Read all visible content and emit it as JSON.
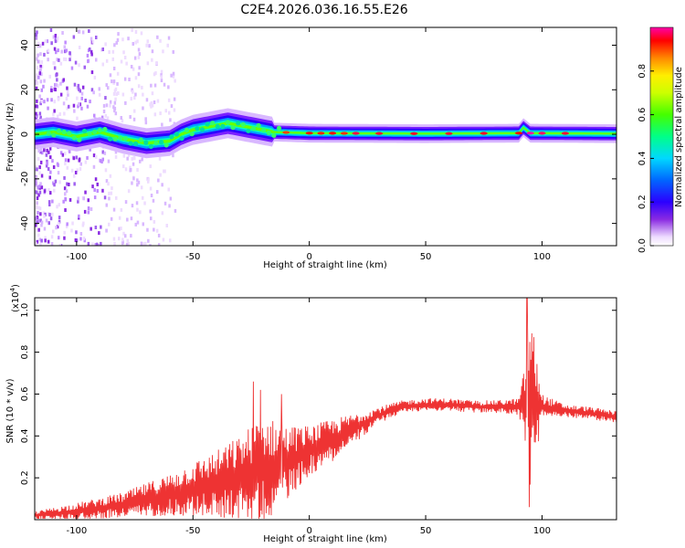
{
  "title": "C2E4.2026.036.16.55.E26",
  "chart_data": [
    {
      "type": "heatmap",
      "name": "spectrogram",
      "xlabel": "Height of straight line (km)",
      "ylabel": "Frequency (Hz)",
      "xlim": [
        -118,
        132
      ],
      "ylim": [
        -50,
        48
      ],
      "xticks": [
        -100,
        -50,
        0,
        50,
        100
      ],
      "xtick_labels": [
        "-100",
        "-50",
        "0",
        "50",
        "100"
      ],
      "yticks": [
        -40,
        -20,
        0,
        20,
        40
      ],
      "ytick_labels": [
        "-40",
        "-20",
        "0",
        "20",
        "40"
      ],
      "band_center_hz": [
        [
          -118,
          0
        ],
        [
          -110,
          1
        ],
        [
          -100,
          -1
        ],
        [
          -90,
          1
        ],
        [
          -80,
          -2
        ],
        [
          -70,
          -4
        ],
        [
          -60,
          -3
        ],
        [
          -55,
          0
        ],
        [
          -50,
          2
        ],
        [
          -45,
          3
        ],
        [
          -40,
          4
        ],
        [
          -35,
          5
        ],
        [
          -30,
          4
        ],
        [
          -25,
          3
        ],
        [
          -20,
          2
        ],
        [
          -15,
          1
        ],
        [
          0,
          0.5
        ],
        [
          50,
          0.3
        ],
        [
          90,
          0.5
        ],
        [
          92,
          3
        ],
        [
          95,
          0.5
        ],
        [
          132,
          0.3
        ]
      ],
      "colorbar": {
        "label": "Normalized spectral amplitude",
        "range": [
          0,
          1
        ],
        "ticks": [
          0,
          0.2,
          0.4,
          0.6,
          0.8
        ],
        "tick_labels": [
          "0.0",
          "0.2",
          "0.4",
          "0.6",
          "0.8"
        ]
      }
    },
    {
      "type": "line",
      "name": "snr",
      "xlabel": "Height of straight line (km)",
      "ylabel": "SNR (10 * v/v)",
      "y_scale_label": "(x10",
      "y_scale_exponent": "4",
      "y_scale_suffix": ")",
      "xlim": [
        -118,
        132
      ],
      "ylim": [
        0,
        1.06
      ],
      "xticks": [
        -100,
        -50,
        0,
        50,
        100
      ],
      "xtick_labels": [
        "-100",
        "-50",
        "0",
        "50",
        "100"
      ],
      "yticks": [
        0.2,
        0.4,
        0.6,
        0.8,
        1.0
      ],
      "ytick_labels": [
        "0.2",
        "0.4",
        "0.6",
        "0.8",
        "1.0"
      ],
      "line_color": "#ee3333",
      "trend": {
        "x": [
          -118,
          -100,
          -80,
          -60,
          -40,
          -30,
          -20,
          -10,
          0,
          10,
          20,
          30,
          40,
          50,
          60,
          70,
          80,
          90,
          92,
          95,
          100,
          110,
          120,
          132
        ],
        "y": [
          0.02,
          0.04,
          0.07,
          0.12,
          0.17,
          0.2,
          0.24,
          0.27,
          0.33,
          0.38,
          0.44,
          0.5,
          0.54,
          0.55,
          0.55,
          0.54,
          0.54,
          0.54,
          0.55,
          0.56,
          0.54,
          0.52,
          0.51,
          0.49
        ]
      },
      "noise_envelope": {
        "x": [
          -118,
          -100,
          -80,
          -60,
          -40,
          -30,
          -20,
          -10,
          0,
          10,
          20,
          30,
          40,
          50,
          60,
          70,
          80,
          90,
          92,
          95,
          100,
          110,
          120,
          132
        ],
        "y": [
          0.02,
          0.04,
          0.06,
          0.1,
          0.16,
          0.2,
          0.26,
          0.18,
          0.12,
          0.1,
          0.07,
          0.04,
          0.03,
          0.03,
          0.03,
          0.03,
          0.03,
          0.04,
          0.15,
          0.45,
          0.06,
          0.03,
          0.03,
          0.03
        ]
      },
      "spikes": [
        {
          "x": -24,
          "y": 0.66
        },
        {
          "x": -21,
          "y": 0.62
        },
        {
          "x": -12,
          "y": 0.6
        },
        {
          "x": 93.5,
          "y": 1.06
        },
        {
          "x": 94.5,
          "y": 0.06
        }
      ]
    }
  ]
}
